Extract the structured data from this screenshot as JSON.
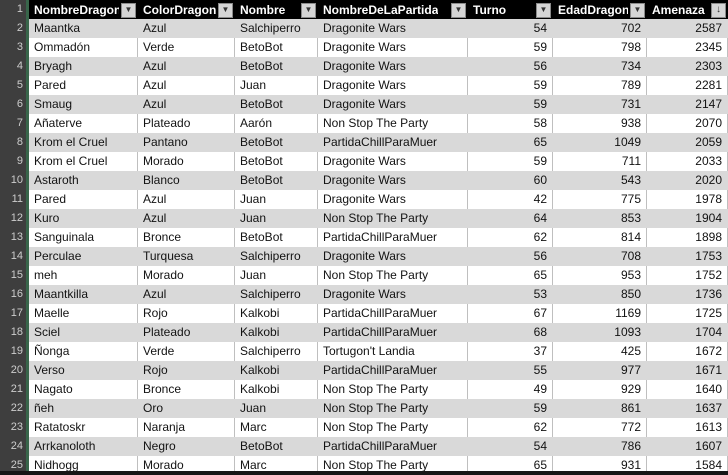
{
  "app": {
    "kind": "spreadsheet-table"
  },
  "colors": {
    "header_bg": "#000000",
    "header_text": "#ffffff",
    "band_gray": "#d9d9d9",
    "band_white": "#ffffff",
    "gutter_bg": "#3e3e3e",
    "gutter_text": "#cdcdcd",
    "accent_green": "#38654a",
    "filter_button_bg": "#d5d5d5"
  },
  "table": {
    "header_row_number": "1",
    "columns": [
      {
        "key": "NombreDragon",
        "label": "NombreDragon",
        "align": "left",
        "icon": "filter-dropdown"
      },
      {
        "key": "ColorDragon",
        "label": "ColorDragon",
        "align": "left",
        "icon": "filter-dropdown"
      },
      {
        "key": "Nombre",
        "label": "Nombre",
        "align": "left",
        "icon": "filter-dropdown"
      },
      {
        "key": "NombreDeLaPartida",
        "label": "NombreDeLaPartida",
        "align": "left",
        "icon": "filter-dropdown"
      },
      {
        "key": "Turno",
        "label": "Turno",
        "align": "right",
        "icon": "filter-dropdown"
      },
      {
        "key": "EdadDragon",
        "label": "EdadDragon",
        "align": "right",
        "icon": "filter-dropdown"
      },
      {
        "key": "Amenaza",
        "label": "Amenaza",
        "align": "right",
        "icon": "sort-descending"
      }
    ],
    "icon_glyphs": {
      "filter-dropdown": "▼",
      "sort-descending": "↓"
    },
    "rows": [
      {
        "n": "2",
        "NombreDragon": "Maantka",
        "ColorDragon": "Azul",
        "Nombre": "Salchiperro",
        "NombreDeLaPartida": "Dragonite Wars",
        "Turno": "54",
        "EdadDragon": "702",
        "Amenaza": "2587"
      },
      {
        "n": "3",
        "NombreDragon": "Ommadón",
        "ColorDragon": "Verde",
        "Nombre": "BetoBot",
        "NombreDeLaPartida": "Dragonite Wars",
        "Turno": "59",
        "EdadDragon": "798",
        "Amenaza": "2345"
      },
      {
        "n": "4",
        "NombreDragon": "Bryagh",
        "ColorDragon": "Azul",
        "Nombre": "BetoBot",
        "NombreDeLaPartida": "Dragonite Wars",
        "Turno": "56",
        "EdadDragon": "734",
        "Amenaza": "2303"
      },
      {
        "n": "5",
        "NombreDragon": "Pared",
        "ColorDragon": "Azul",
        "Nombre": "Juan",
        "NombreDeLaPartida": "Dragonite Wars",
        "Turno": "59",
        "EdadDragon": "789",
        "Amenaza": "2281"
      },
      {
        "n": "6",
        "NombreDragon": "Smaug",
        "ColorDragon": "Azul",
        "Nombre": "BetoBot",
        "NombreDeLaPartida": "Dragonite Wars",
        "Turno": "59",
        "EdadDragon": "731",
        "Amenaza": "2147"
      },
      {
        "n": "7",
        "NombreDragon": "Añaterve",
        "ColorDragon": "Plateado",
        "Nombre": "Aarón",
        "NombreDeLaPartida": "Non Stop The Party",
        "Turno": "58",
        "EdadDragon": "938",
        "Amenaza": "2070"
      },
      {
        "n": "8",
        "NombreDragon": "Krom el Cruel",
        "ColorDragon": "Pantano",
        "Nombre": "BetoBot",
        "NombreDeLaPartida": "PartidaChillParaMuer",
        "Turno": "65",
        "EdadDragon": "1049",
        "Amenaza": "2059"
      },
      {
        "n": "9",
        "NombreDragon": "Krom el Cruel",
        "ColorDragon": "Morado",
        "Nombre": "BetoBot",
        "NombreDeLaPartida": "Dragonite Wars",
        "Turno": "59",
        "EdadDragon": "711",
        "Amenaza": "2033"
      },
      {
        "n": "10",
        "NombreDragon": "Astaroth",
        "ColorDragon": "Blanco",
        "Nombre": "BetoBot",
        "NombreDeLaPartida": "Dragonite Wars",
        "Turno": "60",
        "EdadDragon": "543",
        "Amenaza": "2020"
      },
      {
        "n": "11",
        "NombreDragon": "Pared",
        "ColorDragon": "Azul",
        "Nombre": "Juan",
        "NombreDeLaPartida": "Dragonite Wars",
        "Turno": "42",
        "EdadDragon": "775",
        "Amenaza": "1978"
      },
      {
        "n": "12",
        "NombreDragon": "Kuro",
        "ColorDragon": "Azul",
        "Nombre": "Juan",
        "NombreDeLaPartida": "Non Stop The Party",
        "Turno": "64",
        "EdadDragon": "853",
        "Amenaza": "1904"
      },
      {
        "n": "13",
        "NombreDragon": "Sanguinala",
        "ColorDragon": "Bronce",
        "Nombre": "BetoBot",
        "NombreDeLaPartida": "PartidaChillParaMuer",
        "Turno": "62",
        "EdadDragon": "814",
        "Amenaza": "1898"
      },
      {
        "n": "14",
        "NombreDragon": "Perculae",
        "ColorDragon": "Turquesa",
        "Nombre": "Salchiperro",
        "NombreDeLaPartida": "Dragonite Wars",
        "Turno": "56",
        "EdadDragon": "708",
        "Amenaza": "1753"
      },
      {
        "n": "15",
        "NombreDragon": "meh",
        "ColorDragon": "Morado",
        "Nombre": "Juan",
        "NombreDeLaPartida": "Non Stop The Party",
        "Turno": "65",
        "EdadDragon": "953",
        "Amenaza": "1752"
      },
      {
        "n": "16",
        "NombreDragon": "Maantkilla",
        "ColorDragon": "Azul",
        "Nombre": "Salchiperro",
        "NombreDeLaPartida": "Dragonite Wars",
        "Turno": "53",
        "EdadDragon": "850",
        "Amenaza": "1736"
      },
      {
        "n": "17",
        "NombreDragon": "Maelle",
        "ColorDragon": "Rojo",
        "Nombre": "Kalkobi",
        "NombreDeLaPartida": "PartidaChillParaMuer",
        "Turno": "67",
        "EdadDragon": "1169",
        "Amenaza": "1725"
      },
      {
        "n": "18",
        "NombreDragon": "Sciel",
        "ColorDragon": "Plateado",
        "Nombre": "Kalkobi",
        "NombreDeLaPartida": "PartidaChillParaMuer",
        "Turno": "68",
        "EdadDragon": "1093",
        "Amenaza": "1704"
      },
      {
        "n": "19",
        "NombreDragon": "Ñonga",
        "ColorDragon": "Verde",
        "Nombre": "Salchiperro",
        "NombreDeLaPartida": "Tortugon't Landia",
        "Turno": "37",
        "EdadDragon": "425",
        "Amenaza": "1672"
      },
      {
        "n": "20",
        "NombreDragon": "Verso",
        "ColorDragon": "Rojo",
        "Nombre": "Kalkobi",
        "NombreDeLaPartida": "PartidaChillParaMuer",
        "Turno": "55",
        "EdadDragon": "977",
        "Amenaza": "1671"
      },
      {
        "n": "21",
        "NombreDragon": "Nagato",
        "ColorDragon": "Bronce",
        "Nombre": "Kalkobi",
        "NombreDeLaPartida": "Non Stop The Party",
        "Turno": "49",
        "EdadDragon": "929",
        "Amenaza": "1640"
      },
      {
        "n": "22",
        "NombreDragon": "ñeh",
        "ColorDragon": "Oro",
        "Nombre": "Juan",
        "NombreDeLaPartida": "Non Stop The Party",
        "Turno": "59",
        "EdadDragon": "861",
        "Amenaza": "1637"
      },
      {
        "n": "23",
        "NombreDragon": "Ratatoskr",
        "ColorDragon": "Naranja",
        "Nombre": "Marc",
        "NombreDeLaPartida": "Non Stop The Party",
        "Turno": "62",
        "EdadDragon": "772",
        "Amenaza": "1613"
      },
      {
        "n": "24",
        "NombreDragon": "Arrkanoloth",
        "ColorDragon": "Negro",
        "Nombre": "BetoBot",
        "NombreDeLaPartida": "PartidaChillParaMuer",
        "Turno": "54",
        "EdadDragon": "786",
        "Amenaza": "1607"
      },
      {
        "n": "25",
        "NombreDragon": "Nidhogg",
        "ColorDragon": "Morado",
        "Nombre": "Marc",
        "NombreDeLaPartida": "Non Stop The Party",
        "Turno": "65",
        "EdadDragon": "931",
        "Amenaza": "1584"
      }
    ]
  }
}
